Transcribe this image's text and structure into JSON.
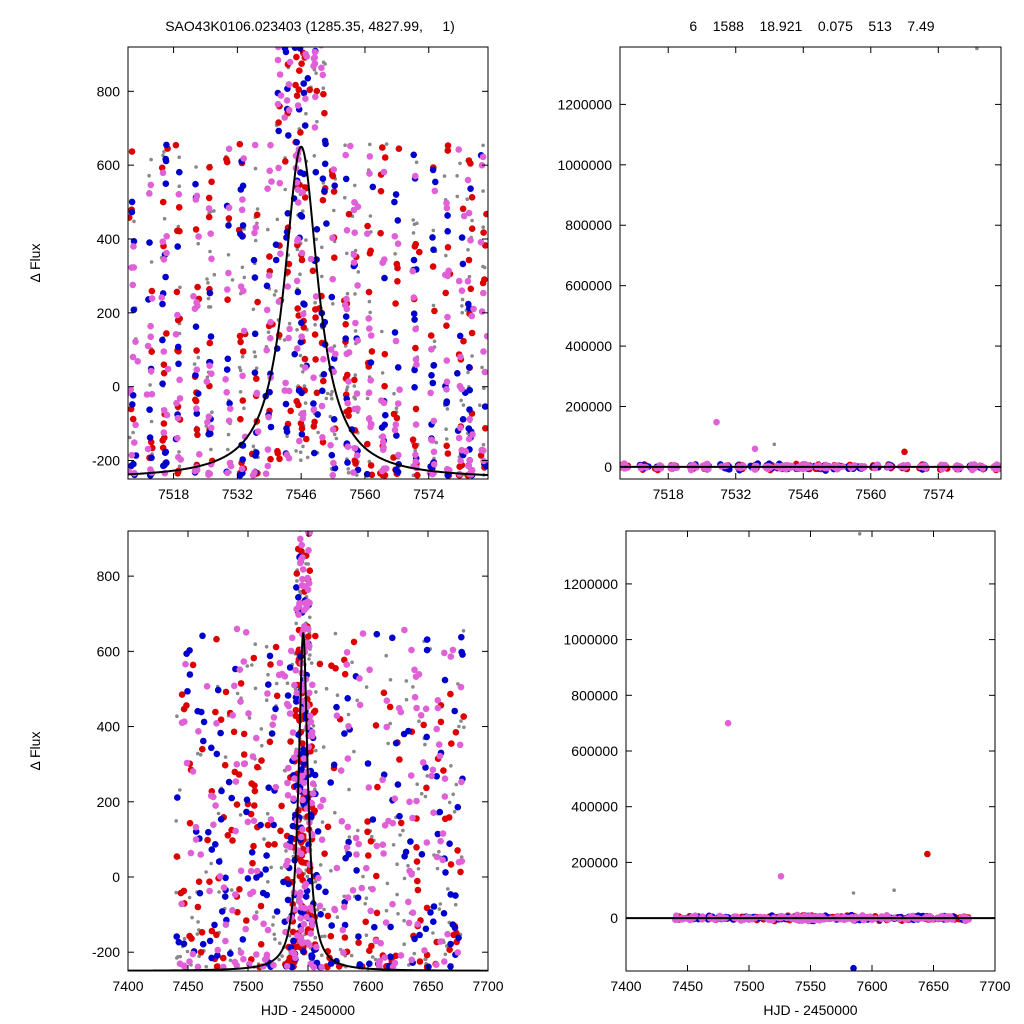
{
  "header": {
    "left_title": "SAO43K0106.023403 (1285.35, 4827.99,     1)",
    "right_title": "6    1588    18.921    0.075    513    7.49"
  },
  "colors": {
    "red": "#dd0000",
    "blue": "#0000cc",
    "magenta": "#e060d8",
    "gray": "#888888",
    "model": "#000000"
  },
  "model_peak": {
    "center": 7546,
    "amplitude": 900,
    "baseline": -250,
    "width_days": 4.5
  },
  "chart_data": [
    {
      "id": "top-left",
      "type": "scatter",
      "title": "SAO43K0106.023403 (1285.35, 4827.99,     1)",
      "xlabel": "",
      "ylabel": "Δ Flux",
      "xlim": [
        7508,
        7587
      ],
      "ylim": [
        -250,
        920
      ],
      "x_ticks": [
        7518,
        7532,
        7546,
        7560,
        7574
      ],
      "y_ticks": [
        -200,
        0,
        200,
        400,
        600,
        800
      ],
      "x_tick_labels": [
        "7518",
        "7532",
        "7546",
        "7560",
        "7574"
      ],
      "y_tick_labels": [
        "-200",
        "0",
        "200",
        "400",
        "600",
        "800"
      ],
      "series": [
        {
          "color": "red",
          "point_count": 260
        },
        {
          "color": "blue",
          "point_count": 240
        },
        {
          "color": "magenta",
          "point_count": 300
        },
        {
          "color": "gray",
          "point_count": 320
        }
      ],
      "model_curve": true
    },
    {
      "id": "top-right",
      "type": "scatter",
      "title": "6    1588    18.921    0.075    513    7.49",
      "xlabel": "",
      "ylabel": "",
      "xlim": [
        7508,
        7587
      ],
      "ylim": [
        -40000,
        1390000
      ],
      "x_ticks": [
        7518,
        7532,
        7546,
        7560,
        7574
      ],
      "y_ticks": [
        0,
        200000,
        400000,
        600000,
        800000,
        1000000,
        1200000
      ],
      "x_tick_labels": [
        "7518",
        "7532",
        "7546",
        "7560",
        "7574"
      ],
      "y_tick_labels": [
        "0",
        "200000",
        "400000",
        "600000",
        "800000",
        "1000000",
        "1200000"
      ],
      "outliers": [
        [
          7528,
          148000
        ],
        [
          7536,
          60000
        ],
        [
          7567,
          50000
        ],
        [
          7540,
          75000
        ],
        [
          7582,
          1385000
        ]
      ],
      "model_curve": true
    },
    {
      "id": "bottom-left",
      "type": "scatter",
      "title": "",
      "xlabel": "HJD - 2450000",
      "ylabel": "Δ Flux",
      "xlim": [
        7400,
        7700
      ],
      "ylim": [
        -250,
        920
      ],
      "x_ticks": [
        7400,
        7450,
        7500,
        7550,
        7600,
        7650,
        7700
      ],
      "y_ticks": [
        -200,
        0,
        200,
        400,
        600,
        800
      ],
      "x_tick_labels": [
        "7400",
        "7450",
        "7500",
        "7550",
        "7600",
        "7650",
        "7700"
      ],
      "y_tick_labels": [
        "-200",
        "0",
        "200",
        "400",
        "600",
        "800"
      ],
      "data_x_range": [
        7440,
        7680
      ],
      "model_curve": true
    },
    {
      "id": "bottom-right",
      "type": "scatter",
      "title": "",
      "xlabel": "HJD - 2450000",
      "ylabel": "",
      "xlim": [
        7400,
        7700
      ],
      "ylim": [
        -190000,
        1390000
      ],
      "x_ticks": [
        7400,
        7450,
        7500,
        7550,
        7600,
        7650,
        7700
      ],
      "y_ticks": [
        0,
        200000,
        400000,
        600000,
        800000,
        1000000,
        1200000
      ],
      "x_tick_labels": [
        "7400",
        "7450",
        "7500",
        "7550",
        "7600",
        "7650",
        "7700"
      ],
      "y_tick_labels": [
        "0",
        "200000",
        "400000",
        "600000",
        "800000",
        "1000000",
        "1200000"
      ],
      "data_x_range": [
        7440,
        7680
      ],
      "outliers": [
        [
          7483,
          700000
        ],
        [
          7526,
          150000
        ],
        [
          7645,
          230000
        ],
        [
          7585,
          90000
        ],
        [
          7618,
          100000
        ],
        [
          7585,
          -180000
        ],
        [
          7590,
          1380000
        ]
      ],
      "model_curve": true
    }
  ]
}
